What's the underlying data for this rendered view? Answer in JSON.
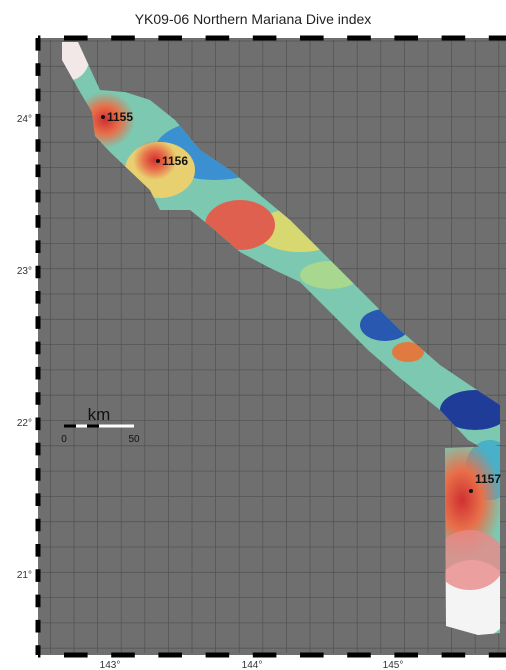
{
  "title": "YK09-06 Northern Mariana Dive index",
  "map": {
    "lat_labels": [
      "24°",
      "23°",
      "22°",
      "21°"
    ],
    "lon_labels": [
      "143°",
      "144°",
      "145°"
    ],
    "dives": [
      {
        "label": "1155"
      },
      {
        "label": "1156"
      },
      {
        "label": "1157"
      }
    ],
    "scale": {
      "unit": "km",
      "ticks": [
        "0",
        "50"
      ]
    }
  }
}
